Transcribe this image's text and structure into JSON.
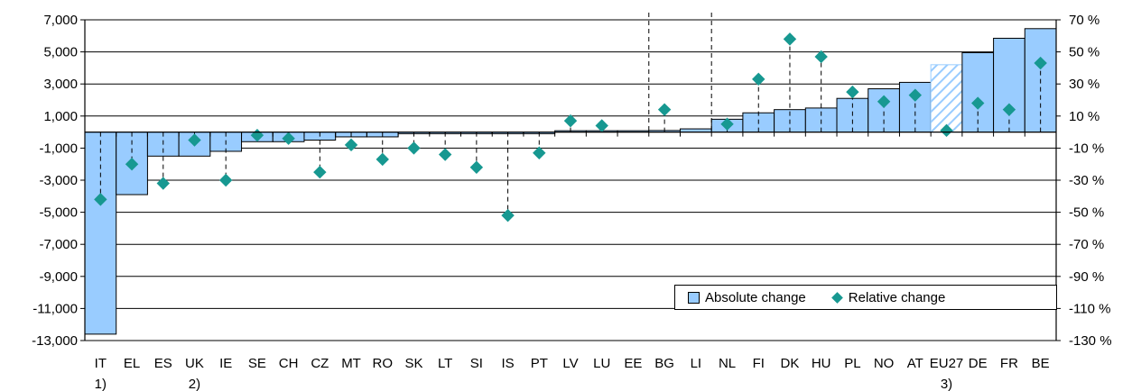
{
  "chart_data": {
    "type": "bar",
    "categories": [
      "IT",
      "EL",
      "ES",
      "UK",
      "IE",
      "SE",
      "CH",
      "CZ",
      "MT",
      "RO",
      "SK",
      "LT",
      "SI",
      "IS",
      "PT",
      "LV",
      "LU",
      "EE",
      "BG",
      "LI",
      "NL",
      "FI",
      "DK",
      "HU",
      "PL",
      "NO",
      "AT",
      "EU27",
      "DE",
      "FR",
      "BE"
    ],
    "footnotes": [
      "1)",
      "",
      "",
      "2)",
      "",
      "",
      "",
      "",
      "",
      "",
      "",
      "",
      "",
      "",
      "",
      "",
      "",
      "",
      "",
      "",
      "",
      "",
      "",
      "",
      "",
      "",
      "",
      "3)",
      "",
      "",
      ""
    ],
    "series": [
      {
        "name": "Absolute change",
        "axis": "left",
        "values": [
          -12600,
          -3900,
          -1500,
          -1500,
          -1200,
          -600,
          -600,
          -500,
          -300,
          -300,
          -100,
          -100,
          -100,
          -100,
          -100,
          0,
          0,
          0,
          100,
          200,
          800,
          1200,
          1400,
          1500,
          2100,
          2700,
          3100,
          4200,
          4950,
          5850,
          6450
        ]
      },
      {
        "name": "Relative change",
        "axis": "right",
        "values": [
          -42,
          -20,
          -32,
          -5,
          -30,
          -2,
          -4,
          -25,
          -8,
          -17,
          -10,
          -14,
          -22,
          -52,
          -13,
          7,
          4,
          null,
          14,
          null,
          5,
          33,
          58,
          47,
          25,
          19,
          23,
          1,
          18,
          14,
          43
        ]
      }
    ],
    "left_axis": {
      "ylim": [
        -13000,
        7000
      ],
      "ticks": [
        "7,000",
        "5,000",
        "3,000",
        "1,000",
        "-1,000",
        "-3,000",
        "-5,000",
        "-7,000",
        "-9,000",
        "-11,000",
        "-13,000"
      ]
    },
    "right_axis": {
      "ylim": [
        -130,
        70
      ],
      "ticks": [
        "70 %",
        "50 %",
        "30 %",
        "10 %",
        "-10 %",
        "-30 %",
        "-50 %",
        "-70 %",
        "-90 %",
        "-110 %",
        "-130 %"
      ]
    },
    "hatched_category": "EU27",
    "tall_dashed_categories": [
      "EE",
      "LI"
    ],
    "grid": true,
    "legend_position": "bottom-right",
    "colors": {
      "bar": "#99ccff",
      "bar_hatch": "#99ccff",
      "marker": "#179891",
      "grid": "#000000"
    }
  }
}
